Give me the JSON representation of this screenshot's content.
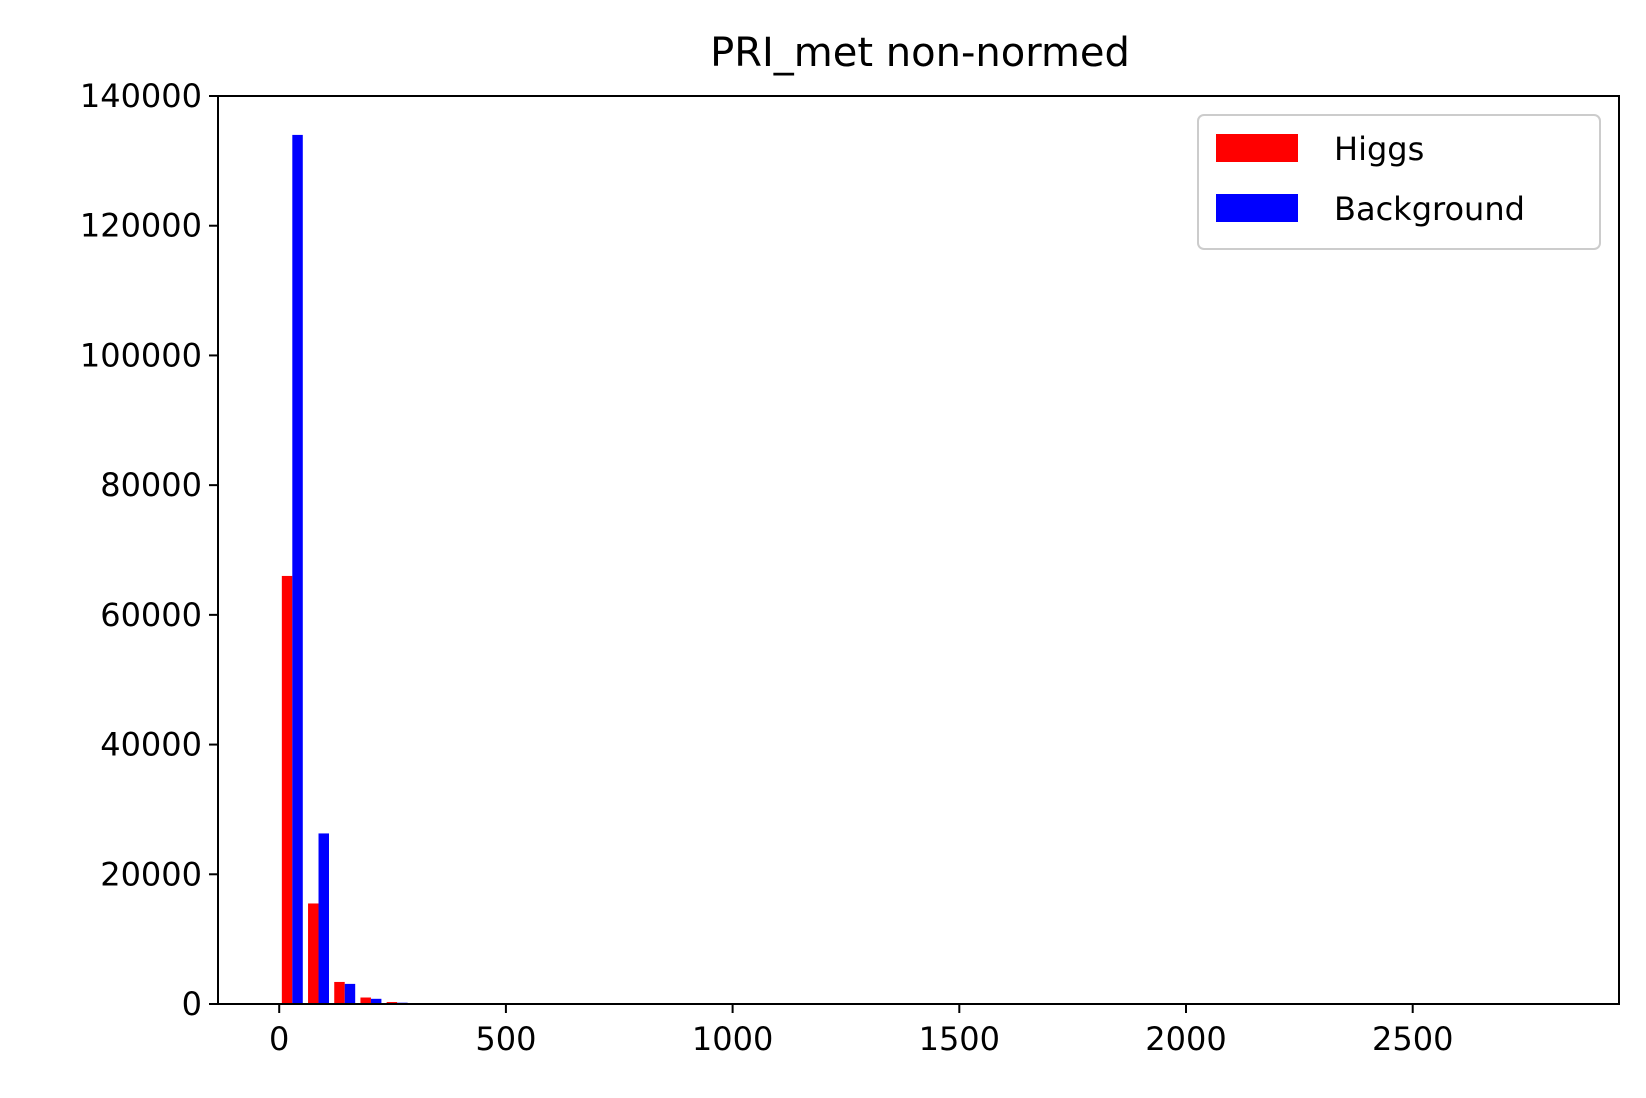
{
  "chart_data": {
    "type": "bar",
    "title": "PRI_met non-normed",
    "xlabel": "",
    "ylabel": "",
    "xlim": [
      -135,
      2955
    ],
    "ylim": [
      0,
      140000
    ],
    "xticks": [
      0,
      500,
      1000,
      1500,
      2000,
      2500
    ],
    "yticks": [
      0,
      20000,
      40000,
      60000,
      80000,
      100000,
      120000,
      140000
    ],
    "grid": false,
    "legend_position": "top-right",
    "bin_width": 57.8,
    "bin_starts": [
      0,
      57.8,
      115.6,
      173.4,
      231.2
    ],
    "series": [
      {
        "name": "Higgs",
        "color": "#ff0000",
        "values": [
          66000,
          15500,
          3400,
          1000,
          300
        ]
      },
      {
        "name": "Background",
        "color": "#0000ff",
        "values": [
          134000,
          26300,
          3100,
          800,
          200
        ]
      }
    ]
  }
}
